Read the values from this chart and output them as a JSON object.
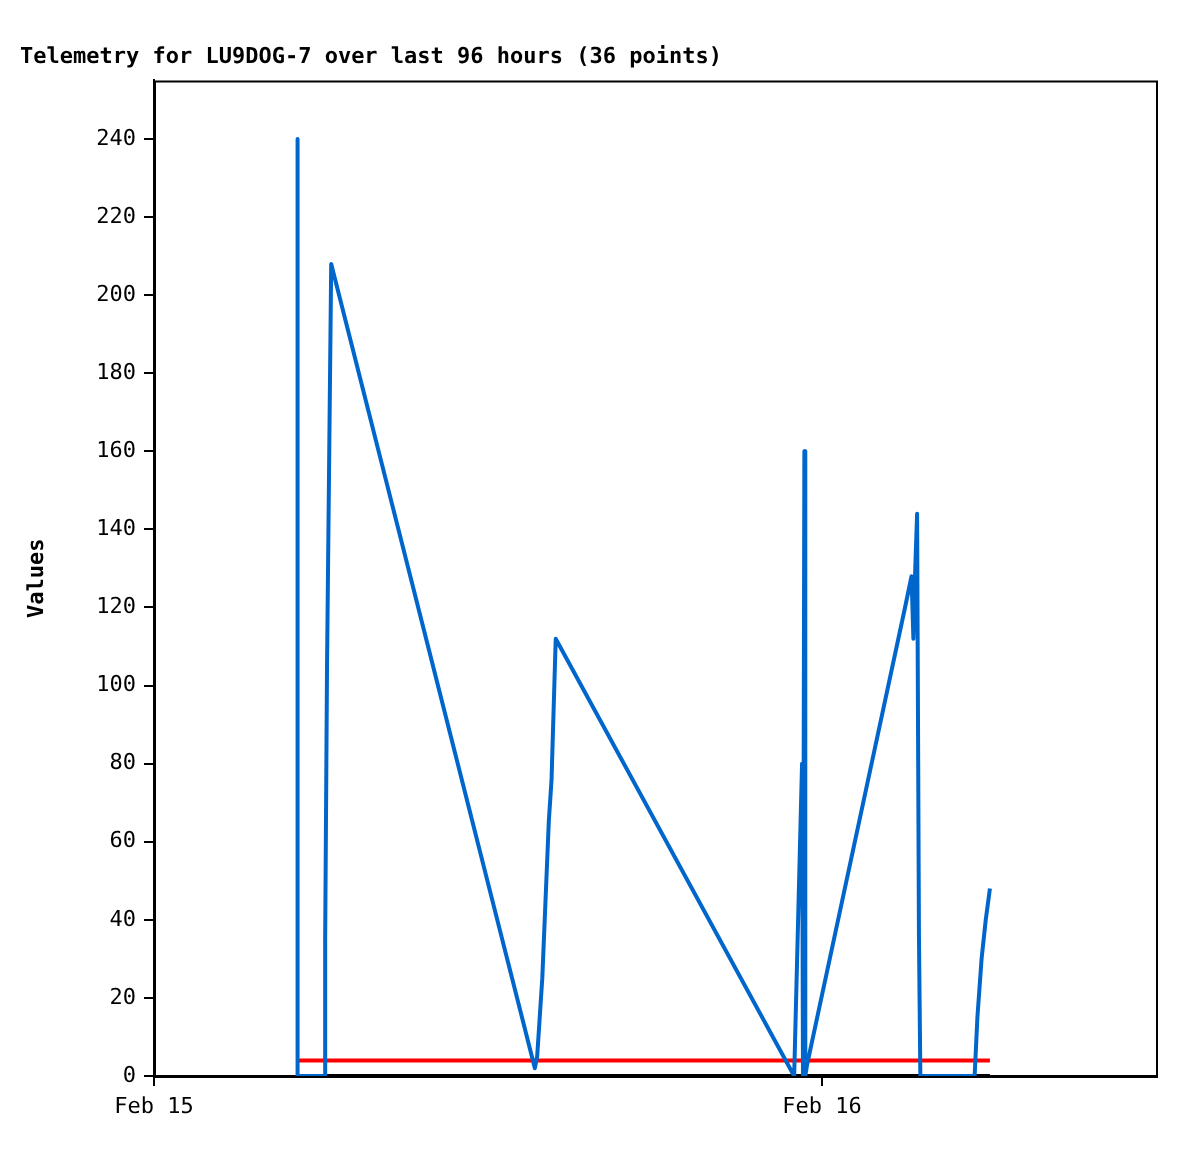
{
  "chart_data": {
    "type": "line",
    "title": "Telemetry for LU9DOG-7 over last 96 hours (36 points)",
    "ylabel": "Values",
    "xlim": [
      "--02-15T00:00",
      "--02-16T12:00"
    ],
    "xticks": [
      {
        "value": "--02-15T00:00",
        "label": "Feb 15"
      },
      {
        "value": "--02-16T00:00",
        "label": "Feb 16"
      }
    ],
    "ylim": [
      0,
      255
    ],
    "yticks": [
      0,
      20,
      40,
      60,
      80,
      100,
      120,
      140,
      160,
      180,
      200,
      220,
      240
    ],
    "grid": false,
    "legend": false,
    "marker": "none",
    "line_style": "solid",
    "series": [
      {
        "color": "#0066cc",
        "x": [
          "--02-15T05:07",
          "--02-15T05:09",
          "--02-15T05:10",
          "--02-15T06:08",
          "--02-15T06:09",
          "--02-15T06:13",
          "--02-15T06:19",
          "--02-15T06:22",
          "--02-15T13:41",
          "--02-15T13:46",
          "--02-15T13:57",
          "--02-15T14:04",
          "--02-15T14:11",
          "--02-15T14:17",
          "--02-15T14:26",
          "--02-15T23:00",
          "--02-15T23:17",
          "--02-15T23:19",
          "--02-15T23:22",
          "--02-15T23:24",
          "--02-15T23:28",
          "--02-16T02:59",
          "--02-16T03:13",
          "--02-16T03:17",
          "--02-16T03:21",
          "--02-16T03:25",
          "--02-16T03:29",
          "--02-16T03:32",
          "--02-16T05:29",
          "--02-16T05:35",
          "--02-16T05:44",
          "--02-16T05:53",
          "--02-16T06:02"
        ],
        "values": [
          0,
          240,
          0,
          0,
          35,
          105,
          174,
          208,
          2,
          5,
          25,
          45,
          65,
          76,
          112,
          0,
          80,
          0,
          160,
          0,
          3,
          120,
          128,
          112,
          130,
          144,
          36,
          0,
          0,
          15,
          30,
          40,
          48
        ]
      },
      {
        "color": "#ff0000",
        "x": [
          "--02-15T05:09",
          "--02-16T06:02"
        ],
        "values": [
          4,
          4
        ]
      },
      {
        "color": "#000000",
        "x": [
          "--02-15T05:09",
          "--02-16T06:02"
        ],
        "values": [
          0,
          0
        ]
      }
    ]
  }
}
